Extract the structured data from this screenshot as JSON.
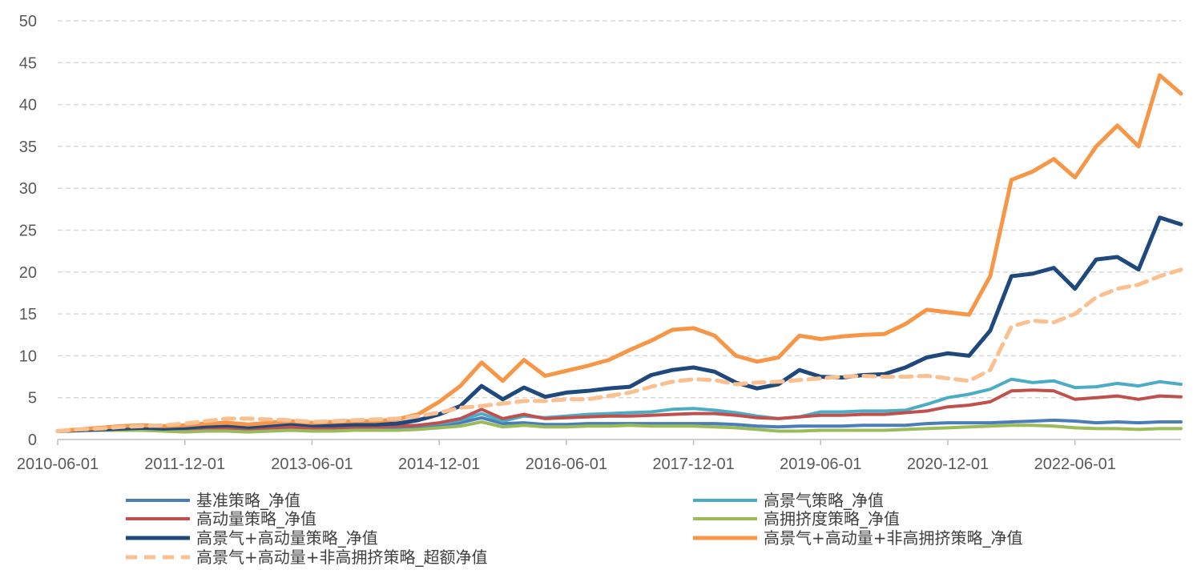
{
  "chart_data": {
    "type": "line",
    "title": "",
    "xlabel": "",
    "ylabel": "",
    "ylim": [
      0,
      50
    ],
    "yticks": [
      "0",
      "5",
      "10",
      "15",
      "20",
      "25",
      "30",
      "35",
      "40",
      "45",
      "50"
    ],
    "xticks": [
      "2010-06-01",
      "2011-12-01",
      "2013-06-01",
      "2014-12-01",
      "2016-06-01",
      "2017-12-01",
      "2019-06-01",
      "2020-12-01",
      "2022-06-01"
    ],
    "grid": "horizontal dashed",
    "legend_position": "bottom",
    "x": [
      "2010-06",
      "2010-09",
      "2010-12",
      "2011-03",
      "2011-06",
      "2011-09",
      "2011-12",
      "2012-03",
      "2012-06",
      "2012-09",
      "2012-12",
      "2013-03",
      "2013-06",
      "2013-09",
      "2013-12",
      "2014-03",
      "2014-06",
      "2014-09",
      "2014-12",
      "2015-03",
      "2015-06",
      "2015-09",
      "2015-12",
      "2016-03",
      "2016-06",
      "2016-09",
      "2016-12",
      "2017-03",
      "2017-06",
      "2017-09",
      "2017-12",
      "2018-03",
      "2018-06",
      "2018-09",
      "2018-12",
      "2019-03",
      "2019-06",
      "2019-09",
      "2019-12",
      "2020-03",
      "2020-06",
      "2020-09",
      "2020-12",
      "2021-03",
      "2021-06",
      "2021-09",
      "2021-12",
      "2022-03",
      "2022-06",
      "2022-09",
      "2022-12",
      "2023-03",
      "2023-06",
      "2023-09"
    ],
    "series": [
      {
        "name": "基准策略_净值",
        "color": "#4a7ebb",
        "width": 4,
        "dash": false,
        "values": [
          1.0,
          1.1,
          1.2,
          1.2,
          1.3,
          1.2,
          1.2,
          1.3,
          1.3,
          1.2,
          1.3,
          1.4,
          1.3,
          1.3,
          1.4,
          1.4,
          1.4,
          1.5,
          1.7,
          2.0,
          2.6,
          1.9,
          2.0,
          1.8,
          1.8,
          1.9,
          1.9,
          1.9,
          1.9,
          1.9,
          1.9,
          1.9,
          1.8,
          1.6,
          1.5,
          1.6,
          1.6,
          1.6,
          1.7,
          1.7,
          1.7,
          1.9,
          2.0,
          2.0,
          2.0,
          2.1,
          2.2,
          2.3,
          2.2,
          2.0,
          2.1,
          2.0,
          2.1,
          2.1
        ]
      },
      {
        "name": "高景气策略_净值",
        "color": "#4bacc6",
        "width": 4,
        "dash": false,
        "values": [
          1.0,
          1.1,
          1.2,
          1.3,
          1.4,
          1.3,
          1.3,
          1.4,
          1.4,
          1.3,
          1.4,
          1.5,
          1.4,
          1.4,
          1.5,
          1.5,
          1.6,
          1.7,
          1.9,
          2.3,
          3.1,
          2.2,
          2.8,
          2.6,
          2.8,
          3.0,
          3.1,
          3.2,
          3.3,
          3.6,
          3.7,
          3.5,
          3.2,
          2.8,
          2.5,
          2.7,
          3.3,
          3.3,
          3.4,
          3.4,
          3.5,
          4.2,
          5.0,
          5.4,
          6.0,
          7.2,
          6.8,
          7.0,
          6.2,
          6.3,
          6.7,
          6.4,
          6.9,
          6.6
        ]
      },
      {
        "name": "高动量策略_净值",
        "color": "#c0504d",
        "width": 4,
        "dash": false,
        "values": [
          1.0,
          1.1,
          1.2,
          1.3,
          1.4,
          1.3,
          1.3,
          1.4,
          1.4,
          1.3,
          1.4,
          1.5,
          1.4,
          1.4,
          1.5,
          1.5,
          1.6,
          1.7,
          2.0,
          2.5,
          3.6,
          2.5,
          3.0,
          2.5,
          2.6,
          2.7,
          2.8,
          2.8,
          2.9,
          3.0,
          3.1,
          3.1,
          2.9,
          2.6,
          2.5,
          2.7,
          2.9,
          2.9,
          3.0,
          3.0,
          3.2,
          3.4,
          3.9,
          4.1,
          4.5,
          5.8,
          5.9,
          5.8,
          4.8,
          5.0,
          5.2,
          4.8,
          5.2,
          5.1
        ]
      },
      {
        "name": "高拥挤度策略_净值",
        "color": "#9bbb59",
        "width": 4,
        "dash": false,
        "values": [
          1.0,
          1.1,
          1.1,
          1.1,
          1.1,
          1.0,
          0.9,
          1.0,
          1.0,
          0.9,
          1.0,
          1.1,
          1.0,
          1.0,
          1.1,
          1.1,
          1.1,
          1.2,
          1.4,
          1.6,
          2.1,
          1.5,
          1.7,
          1.5,
          1.5,
          1.6,
          1.6,
          1.7,
          1.6,
          1.6,
          1.6,
          1.5,
          1.4,
          1.2,
          1.0,
          1.0,
          1.1,
          1.1,
          1.1,
          1.1,
          1.2,
          1.3,
          1.4,
          1.5,
          1.6,
          1.7,
          1.7,
          1.6,
          1.4,
          1.3,
          1.3,
          1.2,
          1.3,
          1.3
        ]
      },
      {
        "name": "高景气+高动量策略_净值",
        "color": "#1f497d",
        "width": 5,
        "dash": false,
        "values": [
          1.0,
          1.1,
          1.2,
          1.3,
          1.4,
          1.3,
          1.4,
          1.6,
          1.7,
          1.5,
          1.7,
          1.9,
          1.7,
          1.7,
          1.8,
          1.8,
          1.9,
          2.3,
          3.0,
          4.0,
          6.4,
          4.8,
          6.2,
          5.1,
          5.6,
          5.8,
          6.1,
          6.3,
          7.7,
          8.3,
          8.6,
          8.1,
          6.8,
          6.1,
          6.6,
          8.3,
          7.5,
          7.4,
          7.7,
          7.8,
          8.6,
          9.8,
          10.3,
          10.0,
          13.0,
          19.5,
          19.8,
          20.5,
          18.0,
          21.5,
          21.8,
          20.3,
          26.5,
          25.7
        ]
      },
      {
        "name": "高景气+高动量+非高拥挤策略_净值",
        "color": "#f79646",
        "width": 5,
        "dash": false,
        "values": [
          1.0,
          1.2,
          1.4,
          1.6,
          1.7,
          1.6,
          1.7,
          1.9,
          2.0,
          1.8,
          2.0,
          2.2,
          2.0,
          2.1,
          2.2,
          2.2,
          2.4,
          3.0,
          4.5,
          6.4,
          9.2,
          7.0,
          9.5,
          7.6,
          8.2,
          8.8,
          9.5,
          10.7,
          11.8,
          13.1,
          13.3,
          12.4,
          10.0,
          9.3,
          9.8,
          12.4,
          12.0,
          12.3,
          12.5,
          12.6,
          13.8,
          15.5,
          15.2,
          14.9,
          19.5,
          31.0,
          32.0,
          33.5,
          31.3,
          35.0,
          37.5,
          35.0,
          43.5,
          41.3
        ]
      },
      {
        "name": "高景气+高动量+非高拥挤策略_超额净值",
        "color": "#fac090",
        "width": 5,
        "dash": true,
        "values": [
          1.0,
          1.2,
          1.3,
          1.5,
          1.6,
          1.7,
          1.9,
          2.2,
          2.5,
          2.5,
          2.4,
          2.3,
          2.1,
          2.2,
          2.3,
          2.4,
          2.5,
          2.8,
          3.2,
          3.8,
          4.0,
          4.3,
          4.6,
          4.6,
          4.8,
          4.8,
          5.2,
          5.6,
          6.3,
          6.9,
          7.2,
          7.1,
          6.6,
          6.8,
          6.9,
          7.1,
          7.3,
          7.5,
          7.6,
          7.5,
          7.5,
          7.6,
          7.3,
          7.0,
          8.3,
          13.5,
          14.2,
          14.0,
          15.0,
          17.0,
          18.0,
          18.5,
          19.5,
          20.3
        ]
      }
    ]
  }
}
